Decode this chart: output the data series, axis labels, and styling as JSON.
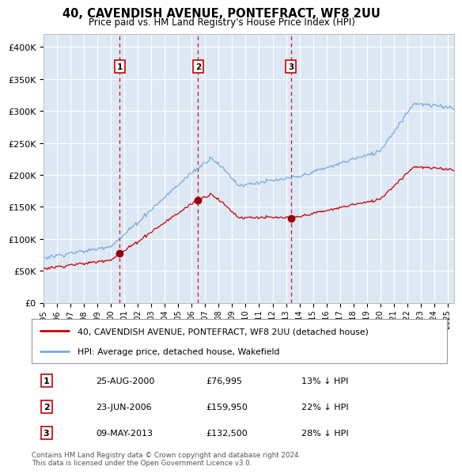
{
  "title": "40, CAVENDISH AVENUE, PONTEFRACT, WF8 2UU",
  "subtitle": "Price paid vs. HM Land Registry's House Price Index (HPI)",
  "bg_color": "#dde8f5",
  "grid_color": "#ffffff",
  "ylim": [
    0,
    420000
  ],
  "yticks": [
    0,
    50000,
    100000,
    150000,
    200000,
    250000,
    300000,
    350000,
    400000
  ],
  "ytick_labels": [
    "£0",
    "£50K",
    "£100K",
    "£150K",
    "£200K",
    "£250K",
    "£300K",
    "£350K",
    "£400K"
  ],
  "sale_dates_num": [
    2000.646,
    2006.474,
    2013.356
  ],
  "sale_prices": [
    76995,
    159950,
    132500
  ],
  "sale_labels": [
    "1",
    "2",
    "3"
  ],
  "red_line_color": "#cc0000",
  "blue_line_color": "#7aabdc",
  "dashed_color": "#cc0000",
  "legend_label_red": "40, CAVENDISH AVENUE, PONTEFRACT, WF8 2UU (detached house)",
  "legend_label_blue": "HPI: Average price, detached house, Wakefield",
  "table_rows": [
    [
      "1",
      "25-AUG-2000",
      "£76,995",
      "13% ↓ HPI"
    ],
    [
      "2",
      "23-JUN-2006",
      "£159,950",
      "22% ↓ HPI"
    ],
    [
      "3",
      "09-MAY-2013",
      "£132,500",
      "28% ↓ HPI"
    ]
  ],
  "footer": "Contains HM Land Registry data © Crown copyright and database right 2024.\nThis data is licensed under the Open Government Licence v3.0.",
  "xmin": 1995.0,
  "xmax": 2025.5
}
